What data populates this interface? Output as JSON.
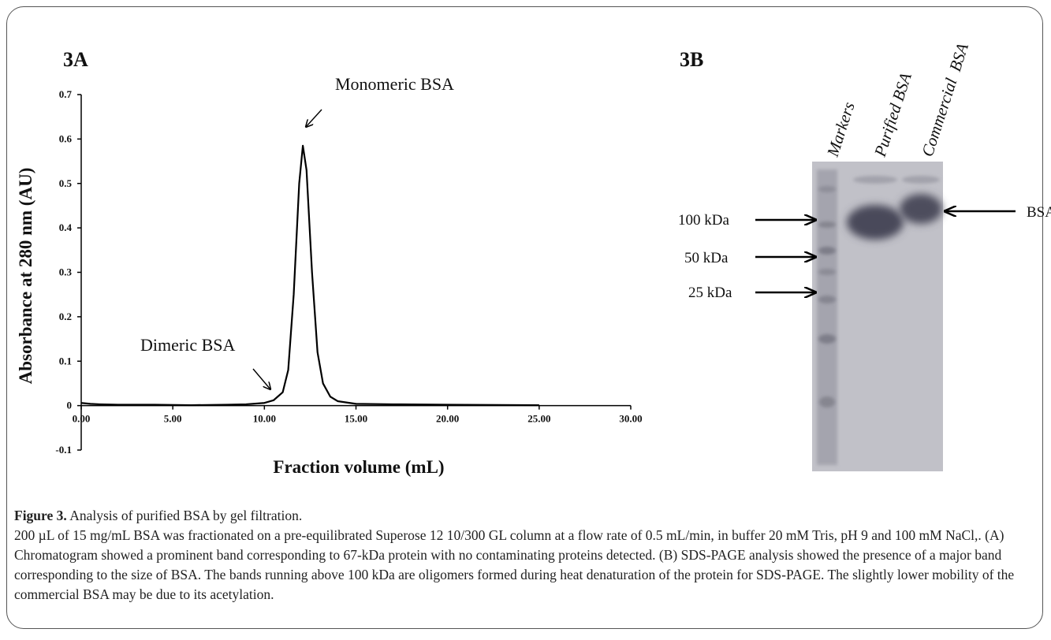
{
  "chart_data": {
    "type": "line",
    "panel_label": "3A",
    "xlabel": "Fraction volume (mL)",
    "ylabel": "Absorbance at 280 nm (AU)",
    "x": [
      0,
      0.5,
      1,
      2,
      4,
      6,
      8,
      9,
      10,
      10.5,
      11,
      11.3,
      11.6,
      11.9,
      12.1,
      12.3,
      12.6,
      12.9,
      13.2,
      13.6,
      14,
      15,
      17,
      20,
      25
    ],
    "values": [
      0.006,
      0.004,
      0.003,
      0.002,
      0.002,
      0.001,
      0.002,
      0.003,
      0.006,
      0.012,
      0.03,
      0.08,
      0.25,
      0.5,
      0.585,
      0.53,
      0.3,
      0.12,
      0.05,
      0.02,
      0.01,
      0.004,
      0.003,
      0.002,
      0.001
    ],
    "color": "#000000",
    "xlim": [
      0,
      30
    ],
    "xticks": [
      {
        "value": 0,
        "label": "0.00"
      },
      {
        "value": 5,
        "label": "5.00"
      },
      {
        "value": 10,
        "label": "10.00"
      },
      {
        "value": 15,
        "label": "15.00"
      },
      {
        "value": 20,
        "label": "20.00"
      },
      {
        "value": 25,
        "label": "25.00"
      },
      {
        "value": 30,
        "label": "30.00"
      }
    ],
    "ylim": [
      -0.1,
      0.7
    ],
    "yticks": [
      -0.1,
      0,
      0.1,
      0.2,
      0.3,
      0.4,
      0.5,
      0.6,
      0.7
    ],
    "annotations": [
      "Monomeric BSA",
      "Dimeric BSA"
    ]
  },
  "gel": {
    "panel_label": "3B",
    "lanes": [
      "Markers",
      "Purified BSA",
      "Commercial  BSA"
    ],
    "markers": [
      "100 kDa",
      "50 kDa",
      "25 kDa"
    ],
    "band_label": "BSA"
  },
  "caption": {
    "label": "Figure 3.",
    "title": "Analysis of purified BSA by gel filtration.",
    "body": "200 µL of 15 mg/mL BSA was fractionated on a pre-equilibrated Superose 12 10/300 GL column at a flow rate of 0.5 mL/min, in buffer 20 mM Tris, pH 9 and 100 mM NaCl,. (A) Chromatogram showed a prominent band corresponding to 67-kDa protein with no contaminating proteins detected. (B) SDS-PAGE analysis showed the presence of a major band corresponding to the size of BSA. The bands running above 100 kDa are oligomers formed during heat denaturation of the protein for SDS-PAGE. The slightly lower mobility of the commercial BSA may be due to its acetylation."
  }
}
